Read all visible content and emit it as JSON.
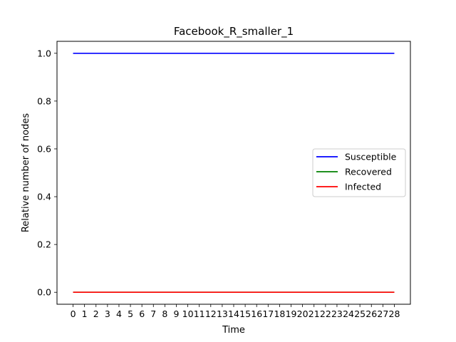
{
  "chart_data": {
    "type": "line",
    "title": "Facebook_R_smaller_1",
    "xlabel": "Time",
    "ylabel": "Relative number of nodes",
    "x": [
      0,
      1,
      2,
      3,
      4,
      5,
      6,
      7,
      8,
      9,
      10,
      11,
      12,
      13,
      14,
      15,
      16,
      17,
      18,
      19,
      20,
      21,
      22,
      23,
      24,
      25,
      26,
      27,
      28
    ],
    "xlim": [
      -1.4,
      29.4
    ],
    "ylim": [
      -0.05,
      1.05
    ],
    "yticks": [
      0.0,
      0.2,
      0.4,
      0.6,
      0.8,
      1.0
    ],
    "ytick_labels": [
      "0.0",
      "0.2",
      "0.4",
      "0.6",
      "0.8",
      "1.0"
    ],
    "grid": false,
    "legend_position": "center-right",
    "series": [
      {
        "name": "Susceptible",
        "color": "#0000ff",
        "values": [
          1,
          1,
          1,
          1,
          1,
          1,
          1,
          1,
          1,
          1,
          1,
          1,
          1,
          1,
          1,
          1,
          1,
          1,
          1,
          1,
          1,
          1,
          1,
          1,
          1,
          1,
          1,
          1,
          1
        ]
      },
      {
        "name": "Recovered",
        "color": "#008000",
        "values": [
          0,
          0,
          0,
          0,
          0,
          0,
          0,
          0,
          0,
          0,
          0,
          0,
          0,
          0,
          0,
          0,
          0,
          0,
          0,
          0,
          0,
          0,
          0,
          0,
          0,
          0,
          0,
          0,
          0
        ]
      },
      {
        "name": "Infected",
        "color": "#ff0000",
        "values": [
          0,
          0,
          0,
          0,
          0,
          0,
          0,
          0,
          0,
          0,
          0,
          0,
          0,
          0,
          0,
          0,
          0,
          0,
          0,
          0,
          0,
          0,
          0,
          0,
          0,
          0,
          0,
          0,
          0
        ]
      }
    ]
  }
}
